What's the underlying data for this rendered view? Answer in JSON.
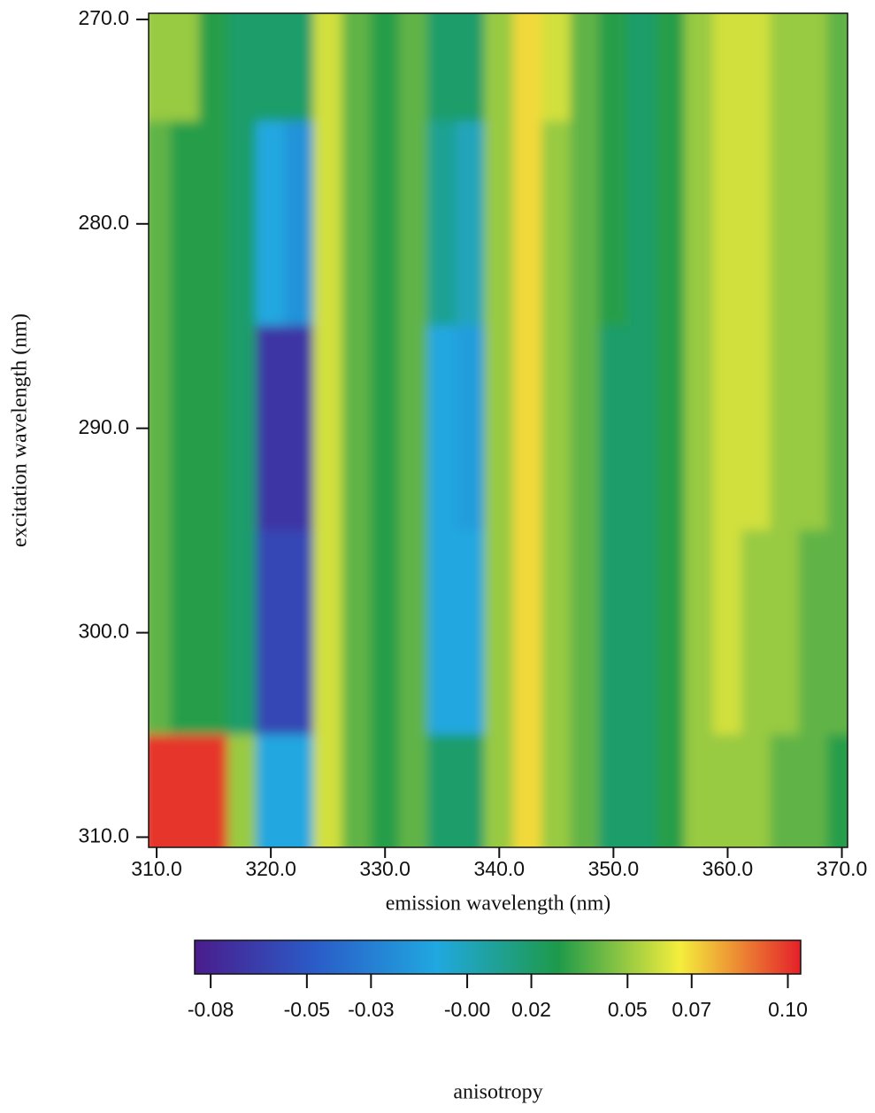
{
  "chart_data": {
    "type": "heatmap",
    "xlabel": "emission wavelength (nm)",
    "ylabel": "excitation wavelength (nm)",
    "colorbar_label": "anisotropy",
    "x": [
      310,
      312.5,
      315,
      317.5,
      320,
      322.5,
      325,
      327.5,
      330,
      332.5,
      335,
      337.5,
      340,
      342.5,
      345,
      347.5,
      350,
      352.5,
      355,
      357.5,
      360,
      362.5,
      365,
      367.5,
      370
    ],
    "y": [
      270,
      280,
      290,
      300,
      310
    ],
    "z": [
      [
        0.05,
        0.05,
        0.03,
        0.02,
        0.02,
        0.02,
        0.06,
        0.04,
        0.03,
        0.04,
        0.02,
        0.02,
        0.05,
        0.07,
        0.06,
        0.04,
        0.03,
        0.02,
        0.03,
        0.05,
        0.06,
        0.06,
        0.05,
        0.05,
        0.04
      ],
      [
        0.04,
        0.03,
        0.03,
        0.02,
        -0.01,
        -0.02,
        0.06,
        0.04,
        0.03,
        0.04,
        0.01,
        0,
        0.05,
        0.07,
        0.05,
        0.04,
        0.03,
        0.02,
        0.03,
        0.05,
        0.06,
        0.06,
        0.05,
        0.05,
        0.04
      ],
      [
        0.04,
        0.03,
        0.03,
        0.02,
        -0.07,
        -0.07,
        0.06,
        0.04,
        0.03,
        0.04,
        -0.01,
        -0.015,
        0.05,
        0.07,
        0.05,
        0.04,
        0.02,
        0.02,
        0.03,
        0.05,
        0.06,
        0.06,
        0.05,
        0.05,
        0.04
      ],
      [
        0.04,
        0.03,
        0.03,
        0.02,
        -0.06,
        -0.06,
        0.06,
        0.04,
        0.03,
        0.04,
        -0.01,
        -0.01,
        0.05,
        0.07,
        0.05,
        0.04,
        0.02,
        0.02,
        0.03,
        0.05,
        0.06,
        0.05,
        0.05,
        0.04,
        0.04
      ],
      [
        0.1,
        0.1,
        0.1,
        0.05,
        -0.01,
        -0.01,
        0.06,
        0.04,
        0.03,
        0.04,
        0.02,
        0.02,
        0.05,
        0.07,
        0.05,
        0.04,
        0.02,
        0.02,
        0.03,
        0.05,
        0.05,
        0.05,
        0.04,
        0.04,
        0.03
      ]
    ],
    "xlim": [
      309.3,
      370.5
    ],
    "ylim": [
      269.7,
      310.5
    ],
    "xticks": [
      {
        "value": 310,
        "label": "310.0"
      },
      {
        "value": 320,
        "label": "320.0"
      },
      {
        "value": 330,
        "label": "330.0"
      },
      {
        "value": 340,
        "label": "340.0"
      },
      {
        "value": 350,
        "label": "350.0"
      },
      {
        "value": 360,
        "label": "360.0"
      },
      {
        "value": 370,
        "label": "370.0"
      }
    ],
    "yticks": [
      {
        "value": 270,
        "label": "270.0"
      },
      {
        "value": 280,
        "label": "280.0"
      },
      {
        "value": 290,
        "label": "290.0"
      },
      {
        "value": 300,
        "label": "300.0"
      },
      {
        "value": 310,
        "label": "310.0"
      }
    ],
    "clim": [
      -0.085,
      0.104
    ],
    "cticks": [
      {
        "value": -0.08,
        "label": "-0.08"
      },
      {
        "value": -0.05,
        "label": "-0.05"
      },
      {
        "value": -0.03,
        "label": "-0.03"
      },
      {
        "value": 0,
        "label": "-0.00"
      },
      {
        "value": 0.02,
        "label": "0.02"
      },
      {
        "value": 0.05,
        "label": "0.05"
      },
      {
        "value": 0.07,
        "label": "0.07"
      },
      {
        "value": 0.1,
        "label": "0.10"
      }
    ],
    "colors": [
      "#4a1c8c",
      "#2a5cc8",
      "#20a8e0",
      "#1e9a4a",
      "#f4ee3c",
      "#e4202a"
    ]
  }
}
